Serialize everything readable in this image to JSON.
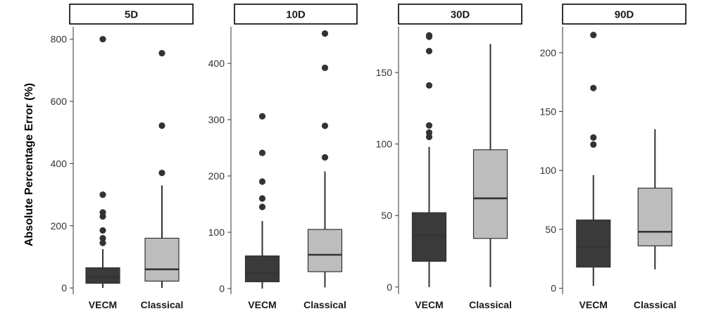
{
  "chart_data": {
    "type": "boxplot",
    "ylabel": "Absolute Percentage Error (%)",
    "categories": [
      "VECM",
      "Classical"
    ],
    "colors": {
      "VECM": "#3a3a3a",
      "Classical": "#bdbdbd"
    },
    "panels": [
      {
        "title": "5D",
        "ylim": [
          -20,
          840
        ],
        "yticks": [
          0,
          200,
          400,
          600,
          800
        ],
        "series": [
          {
            "name": "VECM",
            "whisker_low": 0,
            "q1": 15,
            "median": 35,
            "q3": 65,
            "whisker_high": 125,
            "outliers": [
              145,
              160,
              185,
              230,
              243,
              300,
              800
            ]
          },
          {
            "name": "Classical",
            "whisker_low": 0,
            "q1": 22,
            "median": 60,
            "q3": 160,
            "whisker_high": 330,
            "outliers": [
              370,
              522,
              755
            ]
          }
        ]
      },
      {
        "title": "10D",
        "ylim": [
          -10,
          465
        ],
        "yticks": [
          0,
          100,
          200,
          300,
          400
        ],
        "series": [
          {
            "name": "VECM",
            "whisker_low": 0,
            "q1": 12,
            "median": 27,
            "q3": 58,
            "whisker_high": 120,
            "outliers": [
              145,
              160,
              190,
              241,
              306
            ]
          },
          {
            "name": "Classical",
            "whisker_low": 2,
            "q1": 30,
            "median": 60,
            "q3": 105,
            "whisker_high": 208,
            "outliers": [
              233,
              289,
              392,
              453
            ]
          }
        ]
      },
      {
        "title": "30D",
        "ylim": [
          -5,
          182
        ],
        "yticks": [
          0,
          50,
          100,
          150
        ],
        "series": [
          {
            "name": "VECM",
            "whisker_low": 0,
            "q1": 18,
            "median": 36,
            "q3": 52,
            "whisker_high": 98,
            "outliers": [
              105,
              108,
              113,
              141,
              165,
              175,
              176
            ]
          },
          {
            "name": "Classical",
            "whisker_low": 0,
            "q1": 34,
            "median": 62,
            "q3": 96,
            "whisker_high": 170,
            "outliers": []
          }
        ]
      },
      {
        "title": "90D",
        "ylim": [
          -5,
          222
        ],
        "yticks": [
          0,
          50,
          100,
          150,
          200
        ],
        "series": [
          {
            "name": "VECM",
            "whisker_low": 2,
            "q1": 18,
            "median": 35,
            "q3": 58,
            "whisker_high": 96,
            "outliers": [
              122,
              128,
              170,
              215
            ]
          },
          {
            "name": "Classical",
            "whisker_low": 16,
            "q1": 36,
            "median": 48,
            "q3": 85,
            "whisker_high": 135,
            "outliers": []
          }
        ]
      }
    ]
  }
}
